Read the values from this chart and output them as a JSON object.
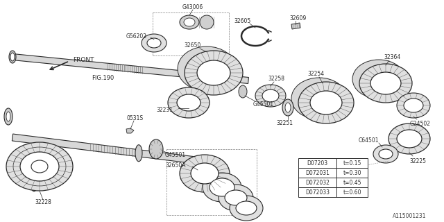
{
  "bg_color": "#ffffff",
  "fig_ref": "FIG.190",
  "front_label": "FRONT",
  "part_number_bottom_right": "A115001231",
  "table_data": [
    [
      "D07203",
      "t=0.15"
    ],
    [
      "D072031",
      "t=0.30"
    ],
    [
      "D072032",
      "t=0.45"
    ],
    [
      "D072033",
      "t=0.60"
    ]
  ],
  "line_color": "#2a2a2a",
  "gear_fill": "#e0e0e0",
  "white": "#ffffff",
  "bg_shade": "#f5f5f5"
}
